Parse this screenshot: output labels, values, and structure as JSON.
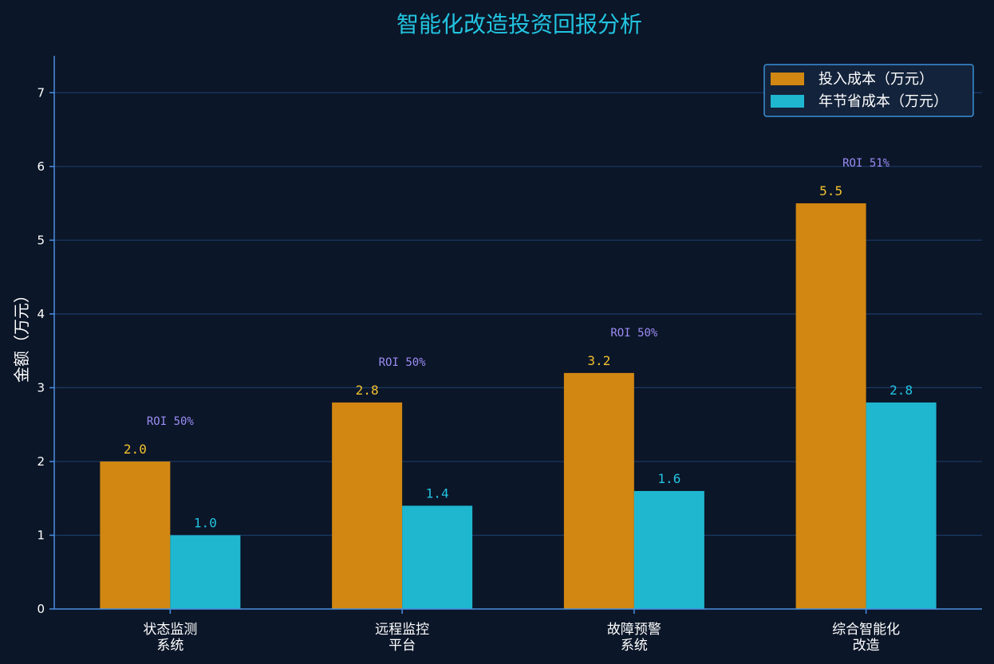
{
  "chart_data": {
    "type": "bar",
    "title": "智能化改造投资回报分析",
    "xlabel": "",
    "ylabel": "金额（万元）",
    "ylim": [
      0,
      7.5
    ],
    "yticks": [
      0,
      1,
      2,
      3,
      4,
      5,
      6,
      7
    ],
    "categories": [
      [
        "状态监测",
        "系统"
      ],
      [
        "远程监控",
        "平台"
      ],
      [
        "故障预警",
        "系统"
      ],
      [
        "综合智能化",
        "改造"
      ]
    ],
    "series": [
      {
        "name": "投入成本（万元）",
        "values": [
          2.0,
          2.8,
          3.2,
          5.5
        ],
        "color": "#d18712"
      },
      {
        "name": "年节省成本（万元）",
        "values": [
          1.0,
          1.4,
          1.6,
          2.8
        ],
        "color": "#1fb6d0"
      }
    ],
    "value_labels": {
      "cost": [
        "2.0",
        "2.8",
        "3.2",
        "5.5"
      ],
      "saving": [
        "1.0",
        "1.4",
        "1.6",
        "2.8"
      ]
    },
    "annotations": [
      "ROI 50%",
      "ROI 50%",
      "ROI 50%",
      "ROI 51%"
    ],
    "grid": true,
    "legend_position": "top-right"
  }
}
